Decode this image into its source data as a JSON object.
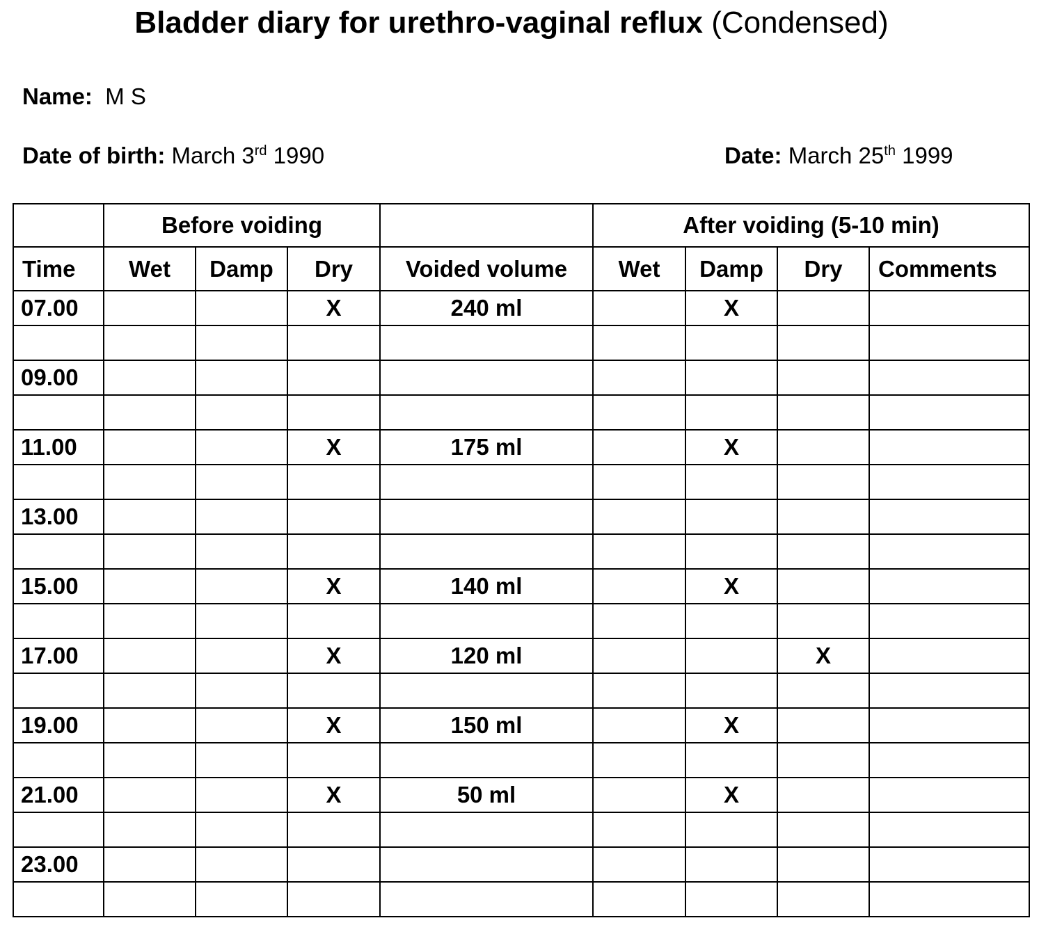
{
  "title": {
    "bold": "Bladder diary for urethro-vaginal reflux",
    "normal": "(Condensed)"
  },
  "name": {
    "label": "Name:",
    "value": "M S"
  },
  "dob": {
    "label": "Date of birth:",
    "value_pre": "March 3",
    "value_sup": "rd",
    "value_post": " 1990"
  },
  "date": {
    "label": "Date:",
    "value_pre": "March 25",
    "value_sup": "th",
    "value_post": " 1999"
  },
  "table": {
    "group_before": "Before voiding",
    "group_after": "After voiding (5-10 min)",
    "columns": [
      "Time",
      "Wet",
      "Damp",
      "Dry",
      "Voided volume",
      "Wet",
      "Damp",
      "Dry",
      "Comments"
    ],
    "rows": [
      [
        "07.00",
        "",
        "",
        "X",
        "240 ml",
        "",
        "X",
        "",
        ""
      ],
      [
        "",
        "",
        "",
        "",
        "",
        "",
        "",
        "",
        ""
      ],
      [
        "09.00",
        "",
        "",
        "",
        "",
        "",
        "",
        "",
        ""
      ],
      [
        "",
        "",
        "",
        "",
        "",
        "",
        "",
        "",
        ""
      ],
      [
        "11.00",
        "",
        "",
        "X",
        "175 ml",
        "",
        "X",
        "",
        ""
      ],
      [
        "",
        "",
        "",
        "",
        "",
        "",
        "",
        "",
        ""
      ],
      [
        "13.00",
        "",
        "",
        "",
        "",
        "",
        "",
        "",
        ""
      ],
      [
        "",
        "",
        "",
        "",
        "",
        "",
        "",
        "",
        ""
      ],
      [
        "15.00",
        "",
        "",
        "X",
        "140 ml",
        "",
        "X",
        "",
        ""
      ],
      [
        "",
        "",
        "",
        "",
        "",
        "",
        "",
        "",
        ""
      ],
      [
        "17.00",
        "",
        "",
        "X",
        "120 ml",
        "",
        "",
        "X",
        ""
      ],
      [
        "",
        "",
        "",
        "",
        "",
        "",
        "",
        "",
        ""
      ],
      [
        "19.00",
        "",
        "",
        "X",
        "150 ml",
        "",
        "X",
        "",
        ""
      ],
      [
        "",
        "",
        "",
        "",
        "",
        "",
        "",
        "",
        ""
      ],
      [
        "21.00",
        "",
        "",
        "X",
        "50 ml",
        "",
        "X",
        "",
        ""
      ],
      [
        "",
        "",
        "",
        "",
        "",
        "",
        "",
        "",
        ""
      ],
      [
        "23.00",
        "",
        "",
        "",
        "",
        "",
        "",
        "",
        ""
      ],
      [
        "",
        "",
        "",
        "",
        "",
        "",
        "",
        "",
        ""
      ]
    ]
  }
}
